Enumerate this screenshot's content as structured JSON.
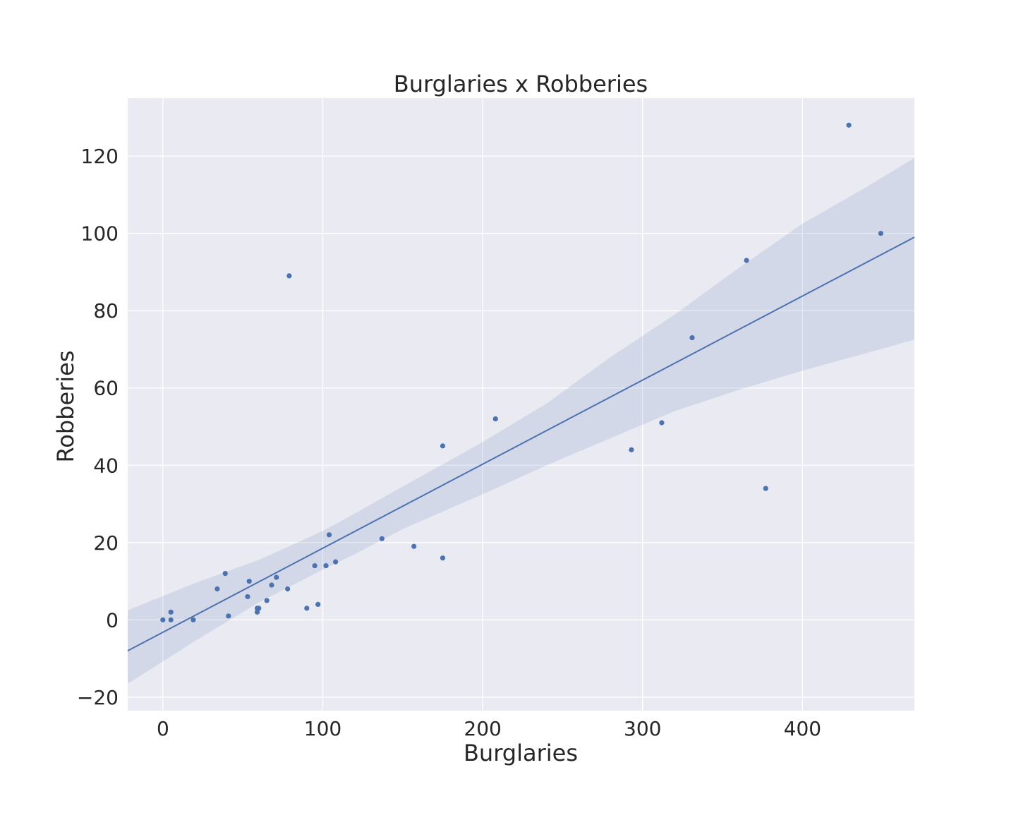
{
  "chart_data": {
    "type": "scatter",
    "title": "Burglaries x Robberies",
    "xlabel": "Burglaries",
    "ylabel": "Robberies",
    "xlim": [
      -22,
      470
    ],
    "ylim": [
      -23.5,
      135
    ],
    "xticks": [
      0,
      100,
      200,
      300,
      400
    ],
    "yticks": [
      -20,
      0,
      20,
      40,
      60,
      80,
      100,
      120
    ],
    "xtick_labels": [
      "0",
      "100",
      "200",
      "300",
      "400"
    ],
    "ytick_labels": [
      "−20",
      "0",
      "20",
      "40",
      "60",
      "80",
      "100",
      "120"
    ],
    "grid": true,
    "legend": "none",
    "colors": {
      "background": "#eaeaf2",
      "grid": "#ffffff",
      "points": "#4c72b0",
      "regression_line": "#4c72b0",
      "confidence_band": "#4c72b0"
    },
    "points": [
      {
        "x": 0,
        "y": 0
      },
      {
        "x": 5,
        "y": 2
      },
      {
        "x": 5,
        "y": 0
      },
      {
        "x": 19,
        "y": 0
      },
      {
        "x": 34,
        "y": 8
      },
      {
        "x": 39,
        "y": 12
      },
      {
        "x": 41,
        "y": 1
      },
      {
        "x": 53,
        "y": 6
      },
      {
        "x": 54,
        "y": 10
      },
      {
        "x": 59,
        "y": 3
      },
      {
        "x": 59,
        "y": 2
      },
      {
        "x": 60,
        "y": 3
      },
      {
        "x": 65,
        "y": 5
      },
      {
        "x": 68,
        "y": 9
      },
      {
        "x": 71,
        "y": 11
      },
      {
        "x": 78,
        "y": 8
      },
      {
        "x": 79,
        "y": 89
      },
      {
        "x": 90,
        "y": 3
      },
      {
        "x": 95,
        "y": 14
      },
      {
        "x": 97,
        "y": 4
      },
      {
        "x": 102,
        "y": 14
      },
      {
        "x": 104,
        "y": 22
      },
      {
        "x": 108,
        "y": 15
      },
      {
        "x": 137,
        "y": 21
      },
      {
        "x": 157,
        "y": 19
      },
      {
        "x": 175,
        "y": 16
      },
      {
        "x": 175,
        "y": 45
      },
      {
        "x": 208,
        "y": 52
      },
      {
        "x": 293,
        "y": 44
      },
      {
        "x": 312,
        "y": 51
      },
      {
        "x": 331,
        "y": 73
      },
      {
        "x": 365,
        "y": 93
      },
      {
        "x": 377,
        "y": 34
      },
      {
        "x": 429,
        "y": 128
      },
      {
        "x": 449,
        "y": 100
      }
    ],
    "regression_line": [
      {
        "x": -22,
        "y": -8
      },
      {
        "x": 470,
        "y": 99
      }
    ],
    "confidence_band": {
      "x": [
        -22,
        20,
        60,
        100,
        120,
        150,
        200,
        240,
        280,
        320,
        360,
        400,
        440,
        470
      ],
      "upper": [
        2.5,
        9.5,
        15.5,
        23,
        27.5,
        34.5,
        46,
        56,
        68,
        79,
        91,
        102.5,
        112,
        119.5
      ],
      "lower": [
        -16.5,
        -5.5,
        4.5,
        13,
        17,
        23.5,
        32.5,
        40,
        47,
        54,
        59.5,
        64.5,
        69,
        72.5
      ]
    }
  }
}
